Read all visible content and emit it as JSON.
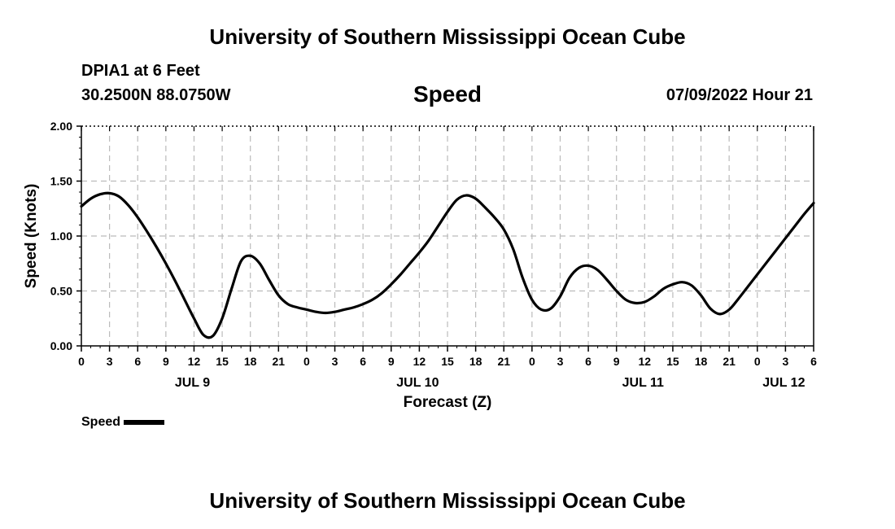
{
  "header": {
    "top_title": "University of Southern Mississippi Ocean Cube",
    "station": "DPIA1 at 6 Feet",
    "coords": "30.2500N  88.0750W",
    "timestamp": "07/09/2022 Hour 21",
    "bottom_title": "University of Southern Mississippi Ocean Cube"
  },
  "legend": {
    "label": "Speed"
  },
  "chart_data": {
    "type": "line",
    "title": "Speed",
    "xlabel": "Forecast (Z)",
    "ylabel": "Speed (Knots)",
    "ylim": [
      0,
      2
    ],
    "y_ticks": [
      "0.00",
      "0.50",
      "1.00",
      "1.50",
      "2.00"
    ],
    "x_unit": "hours since 2022-07-09 00Z",
    "xlim": [
      0,
      78
    ],
    "x_ticks": [
      0,
      3,
      6,
      9,
      12,
      15,
      18,
      21,
      24,
      27,
      30,
      33,
      36,
      39,
      42,
      45,
      48,
      51,
      54,
      57,
      60,
      63,
      66,
      69,
      72,
      75,
      78
    ],
    "x_tick_labels": [
      "0",
      "3",
      "6",
      "9",
      "12",
      "15",
      "18",
      "21",
      "0",
      "3",
      "6",
      "9",
      "12",
      "15",
      "18",
      "21",
      "0",
      "3",
      "6",
      "9",
      "12",
      "15",
      "18",
      "21",
      "0",
      "3",
      "6"
    ],
    "day_labels": [
      {
        "label": "JUL 9",
        "at": 12
      },
      {
        "label": "JUL 10",
        "at": 36
      },
      {
        "label": "JUL 11",
        "at": 60
      },
      {
        "label": "JUL 12",
        "at": 75
      }
    ],
    "grid": true,
    "legend_position": "bottom-left",
    "series": [
      {
        "name": "Speed",
        "color": "#000000",
        "x": [
          0,
          1,
          2,
          3,
          4,
          5,
          6,
          7,
          8,
          9,
          10,
          11,
          12,
          13,
          14,
          15,
          16,
          17,
          18,
          19,
          20,
          21,
          22,
          23,
          24,
          25,
          26,
          27,
          28,
          29,
          30,
          31,
          32,
          33,
          34,
          35,
          36,
          37,
          38,
          39,
          40,
          41,
          42,
          43,
          44,
          45,
          46,
          47,
          48,
          49,
          50,
          51,
          52,
          53,
          54,
          55,
          56,
          57,
          58,
          59,
          60,
          61,
          62,
          63,
          64,
          65,
          66,
          67,
          68,
          69,
          70,
          71,
          72,
          73,
          74,
          75,
          76,
          77,
          78
        ],
        "values": [
          1.27,
          1.34,
          1.38,
          1.39,
          1.36,
          1.28,
          1.17,
          1.04,
          0.9,
          0.75,
          0.59,
          0.42,
          0.25,
          0.1,
          0.09,
          0.25,
          0.52,
          0.77,
          0.82,
          0.75,
          0.6,
          0.46,
          0.38,
          0.35,
          0.33,
          0.31,
          0.3,
          0.31,
          0.33,
          0.35,
          0.38,
          0.42,
          0.48,
          0.56,
          0.65,
          0.75,
          0.85,
          0.96,
          1.09,
          1.22,
          1.33,
          1.37,
          1.34,
          1.26,
          1.17,
          1.06,
          0.88,
          0.62,
          0.42,
          0.33,
          0.34,
          0.45,
          0.62,
          0.71,
          0.73,
          0.69,
          0.6,
          0.5,
          0.42,
          0.39,
          0.4,
          0.45,
          0.52,
          0.56,
          0.58,
          0.55,
          0.46,
          0.34,
          0.29,
          0.33,
          0.43,
          0.54,
          0.65,
          0.76,
          0.87,
          0.98,
          1.09,
          1.2,
          1.3
        ]
      }
    ]
  }
}
